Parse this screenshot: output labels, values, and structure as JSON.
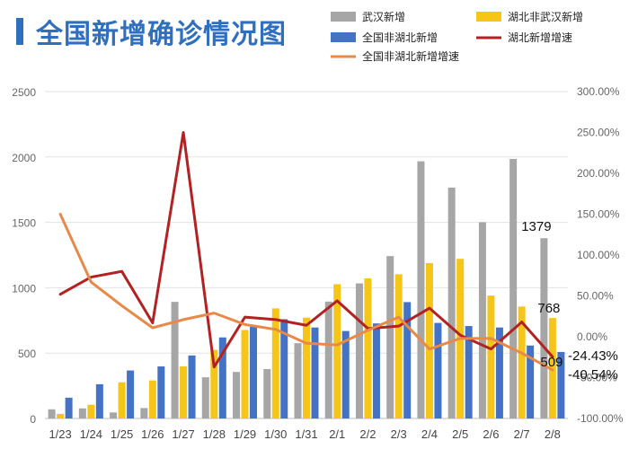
{
  "title": "全国新增确诊情况图",
  "chart_data": {
    "type": "bar",
    "categories": [
      "1/23",
      "1/24",
      "1/25",
      "1/26",
      "1/27",
      "1/28",
      "1/29",
      "1/30",
      "1/31",
      "2/1",
      "2/2",
      "2/3",
      "2/4",
      "2/5",
      "2/6",
      "2/7",
      "2/8"
    ],
    "ylim": [
      0,
      2500
    ],
    "yticks": [
      "0",
      "500",
      "1000",
      "1500",
      "2000",
      "2500"
    ],
    "y2lim": [
      -100,
      300
    ],
    "y2ticks": [
      "-100.00%",
      "-50.00%",
      "0.00%",
      "50.00%",
      "100.00%",
      "150.00%",
      "200.00%",
      "250.00%",
      "300.00%"
    ],
    "grid": true,
    "legend_position": "top-right",
    "series": [
      {
        "name": "武汉新增",
        "kind": "bar",
        "color": "#a6a6a6",
        "values": [
          70,
          77,
          46,
          80,
          892,
          315,
          356,
          378,
          576,
          894,
          1033,
          1242,
          1967,
          1766,
          1501,
          1985,
          1379
        ]
      },
      {
        "name": "湖北非武汉新增",
        "kind": "bar",
        "color": "#f5c518",
        "values": [
          35,
          105,
          277,
          291,
          399,
          525,
          677,
          842,
          771,
          1027,
          1071,
          1103,
          1188,
          1221,
          940,
          856,
          768
        ]
      },
      {
        "name": "全国非湖北新增",
        "kind": "bar",
        "color": "#4472c4",
        "values": [
          159,
          262,
          367,
          398,
          482,
          620,
          702,
          759,
          696,
          669,
          727,
          890,
          731,
          707,
          696,
          558,
          509
        ]
      },
      {
        "name": "湖北新增增速",
        "kind": "line",
        "axis": "right",
        "color": "#b22222",
        "values": [
          52,
          73,
          80,
          17,
          250,
          -37,
          24,
          21,
          14,
          44,
          10,
          13,
          35,
          2,
          -15,
          18,
          -24.43
        ]
      },
      {
        "name": "全国非湖北新增增速",
        "kind": "line",
        "axis": "right",
        "color": "#e8894a",
        "values": [
          150,
          67,
          38,
          11,
          21,
          29,
          15,
          9,
          -8,
          -10,
          8,
          24,
          -15,
          -2,
          -2,
          -20,
          -40.54
        ]
      }
    ],
    "annotations": [
      "1379",
      "768",
      "509",
      "-24.43%",
      "-40.54%"
    ]
  }
}
